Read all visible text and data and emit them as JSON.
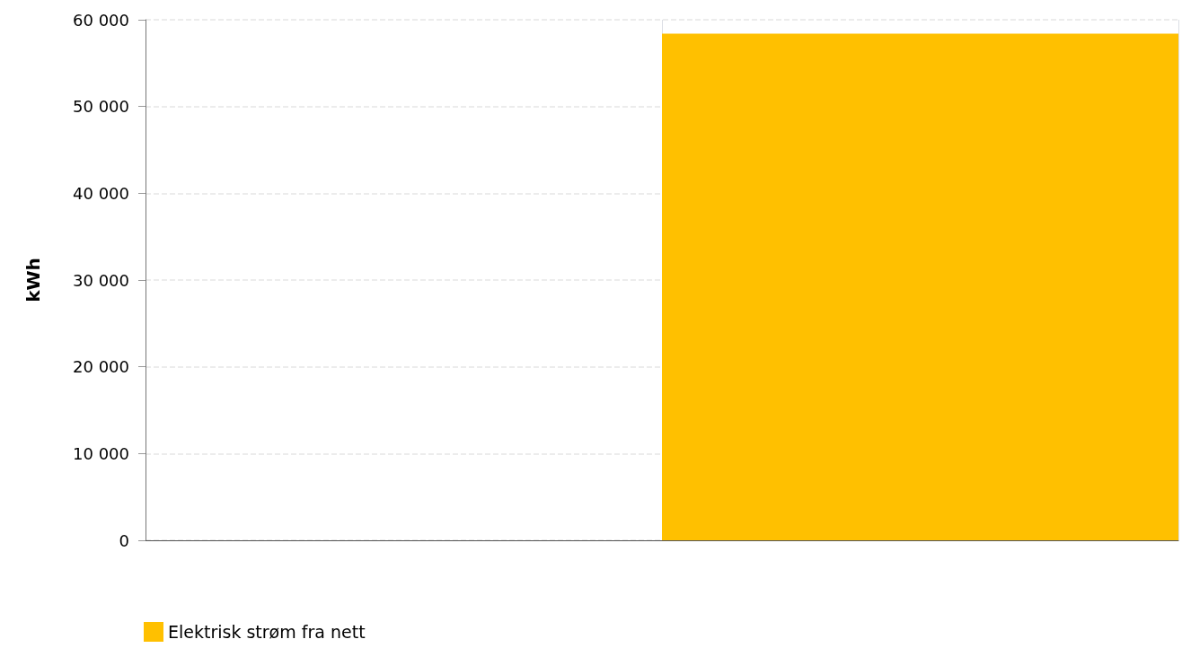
{
  "chart_data": {
    "type": "bar",
    "ylabel": "kWh",
    "categories": [
      null,
      null
    ],
    "series": [
      {
        "name": "Elektrisk strøm fra nett",
        "color": "#ffc000",
        "values": [
          null,
          58400
        ]
      }
    ],
    "ylim": [
      0,
      60000
    ],
    "yticks": [
      {
        "value": 0,
        "label": "0"
      },
      {
        "value": 10000,
        "label": "10 000"
      },
      {
        "value": 20000,
        "label": "20 000"
      },
      {
        "value": 30000,
        "label": "30 000"
      },
      {
        "value": 40000,
        "label": "40 000"
      },
      {
        "value": 50000,
        "label": "50 000"
      },
      {
        "value": 60000,
        "label": "60 000"
      }
    ],
    "grid": true,
    "legend": "bottom left"
  }
}
